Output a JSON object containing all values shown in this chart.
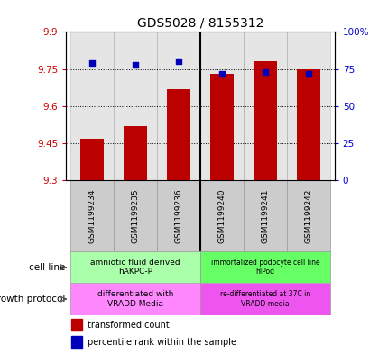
{
  "title": "GDS5028 / 8155312",
  "samples": [
    "GSM1199234",
    "GSM1199235",
    "GSM1199236",
    "GSM1199240",
    "GSM1199241",
    "GSM1199242"
  ],
  "bar_values": [
    9.47,
    9.52,
    9.67,
    9.73,
    9.78,
    9.75
  ],
  "percentile_values": [
    79,
    78,
    80,
    72,
    73,
    72
  ],
  "ymin": 9.3,
  "ymax": 9.9,
  "yticks": [
    9.3,
    9.45,
    9.6,
    9.75,
    9.9
  ],
  "ytick_labels": [
    "9.3",
    "9.45",
    "9.6",
    "9.75",
    "9.9"
  ],
  "y2min": 0,
  "y2max": 100,
  "y2ticks": [
    0,
    25,
    50,
    75,
    100
  ],
  "y2tick_labels": [
    "0",
    "25",
    "50",
    "75",
    "100%"
  ],
  "bar_color": "#bb0000",
  "dot_color": "#0000bb",
  "cell_color_group1": "#aaffaa",
  "cell_color_group2": "#66ff66",
  "growth_color_group1": "#ff88ff",
  "growth_color_group2": "#ee55ee",
  "sample_box_color": "#cccccc",
  "cell_line_group1": "amniotic fluid derived\nhAKPC-P",
  "cell_line_group2": "immortalized podocyte cell line\nhIPod",
  "growth_group1": "differentiated with\nVRADD Media",
  "growth_group2": "re-differentiated at 37C in\nVRADD media",
  "cell_line_label": "cell line",
  "growth_label": "growth protocol",
  "legend_bar_label": "transformed count",
  "legend_dot_label": "percentile rank within the sample",
  "divider_after": 2,
  "tick_color_left": "#cc0000",
  "tick_color_right": "#0000cc",
  "fig_width": 4.31,
  "fig_height": 3.93
}
